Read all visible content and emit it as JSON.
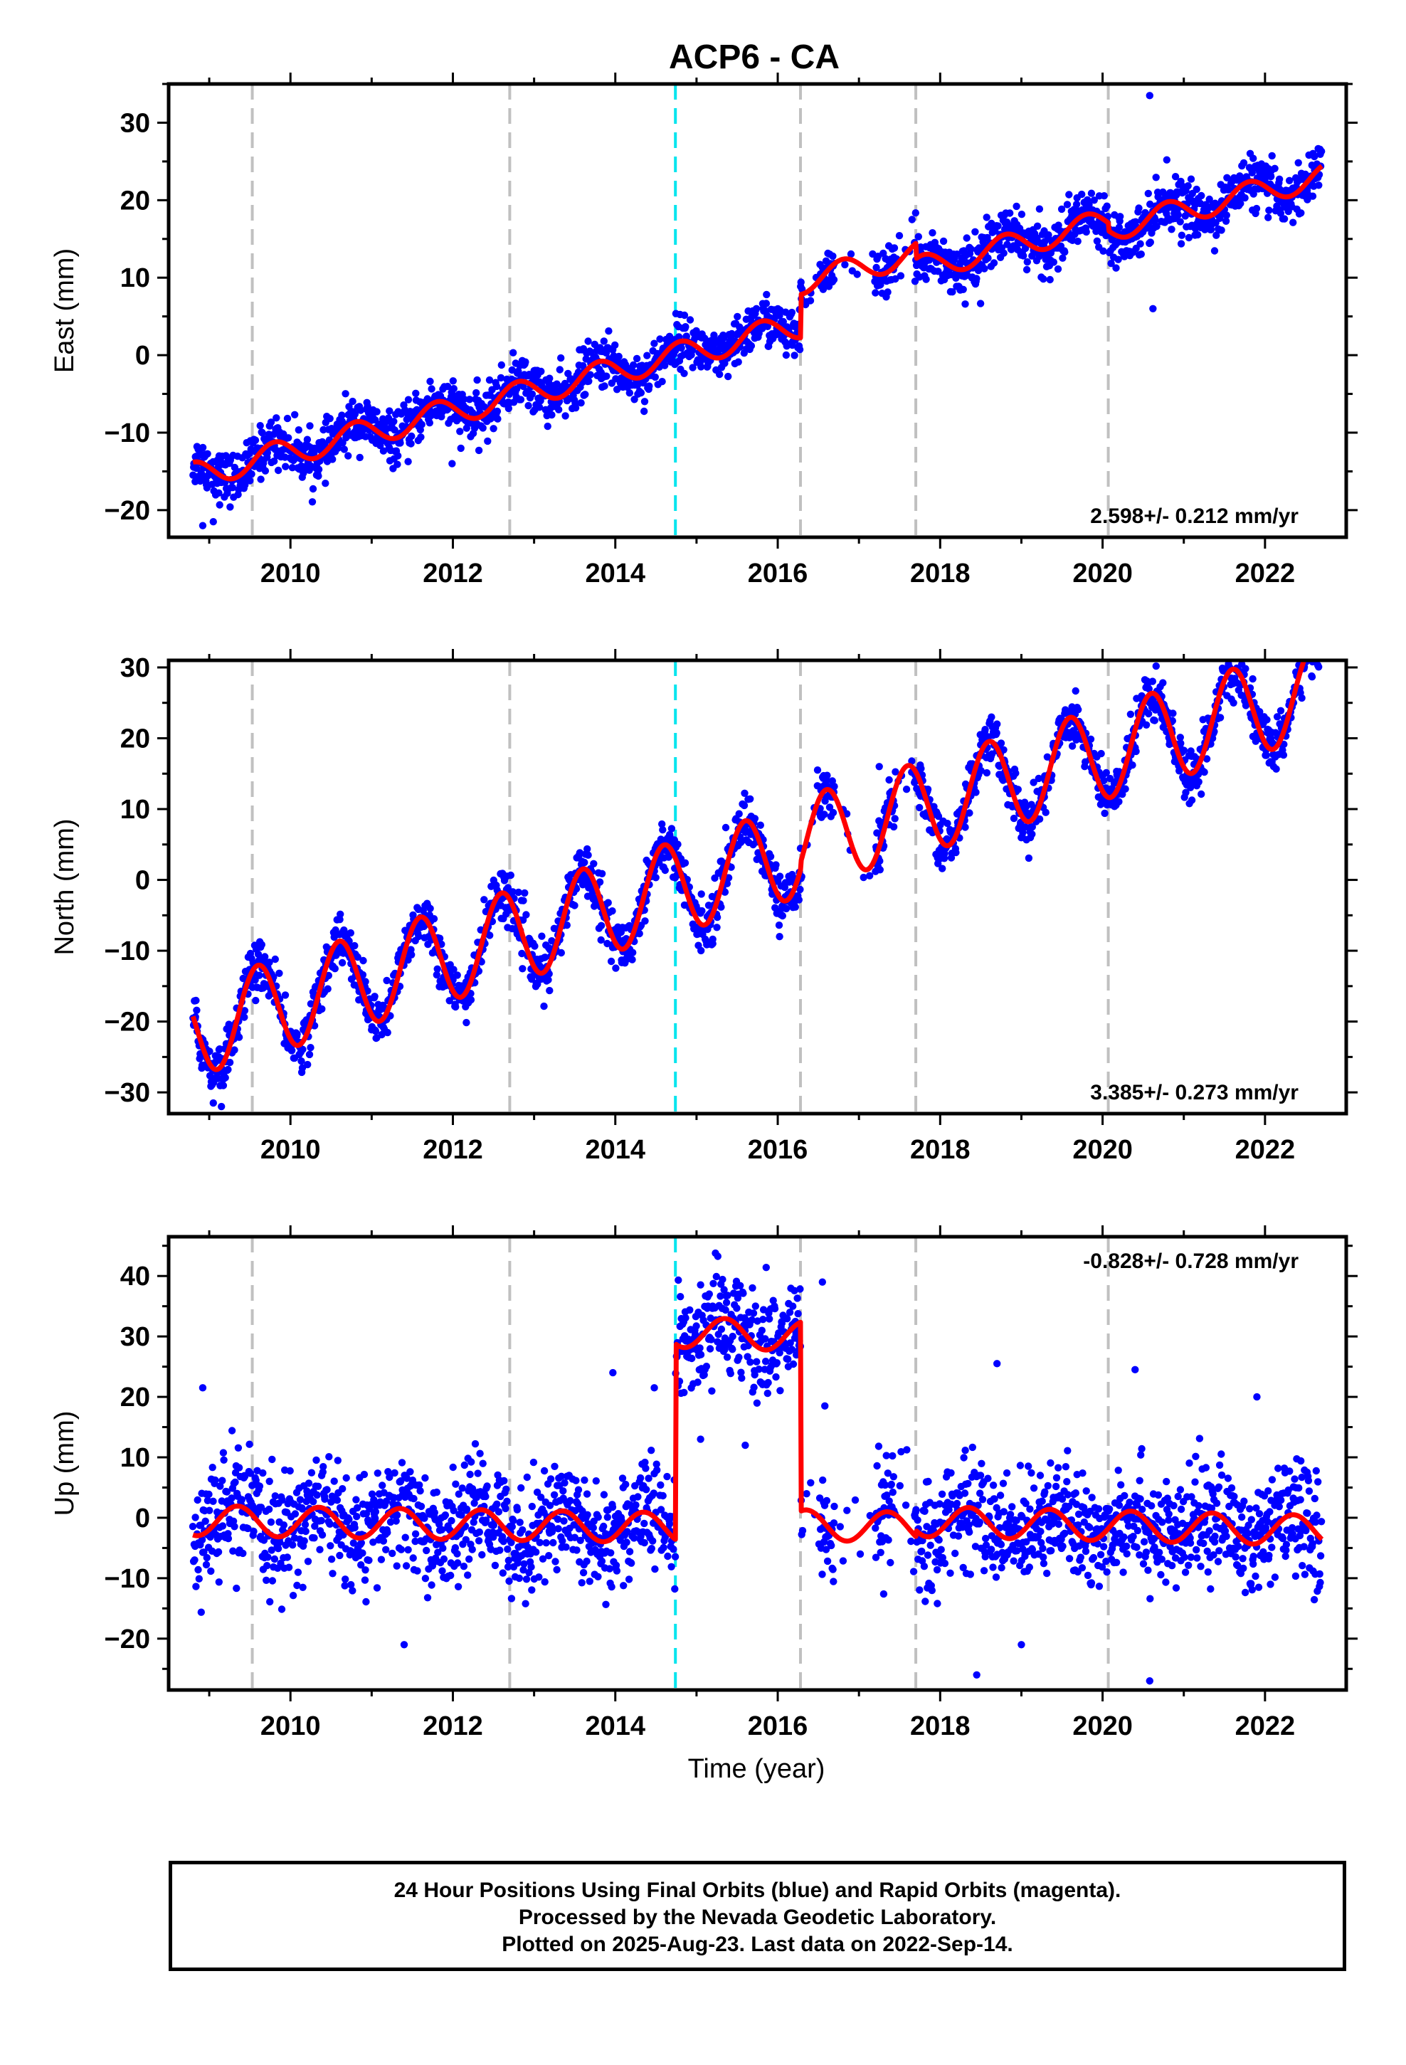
{
  "chart_data": {
    "title": "ACP6 - CA",
    "xlabel": "Time (year)",
    "xlim": [
      2008.5,
      2023.0
    ],
    "x_ticks": [
      2010,
      2012,
      2014,
      2016,
      2018,
      2020,
      2022
    ],
    "x_tick_labels": [
      "2010",
      "2012",
      "2014",
      "2016",
      "2018",
      "2020",
      "2022"
    ],
    "event_lines": {
      "gray_dashed": [
        2009.53,
        2012.7,
        2016.28,
        2017.7,
        2020.07
      ],
      "cyan_dashed": [
        2014.74
      ]
    },
    "point_color": "#0000ff",
    "model_color": "#ff0000",
    "event_gray_color": "#c0c0c0",
    "event_cyan_color": "#00e5ee",
    "panels": [
      {
        "type": "scatter",
        "ylabel": "East (mm)",
        "ylim": [
          -23.5,
          35.0
        ],
        "y_ticks": [
          -20,
          -10,
          0,
          10,
          20,
          30
        ],
        "y_tick_labels": [
          "−20",
          "−10",
          "0",
          "10",
          "20",
          "30"
        ],
        "rate_label": "2.598+/- 0.212 mm/yr",
        "rate_position": "bottom-right",
        "model": {
          "segments": [
            {
              "start": 2008.8,
              "end": 2016.28,
              "offset": -2.0,
              "rate": 2.6,
              "amp": 1.7,
              "phase": 0.55,
              "x0": 2014.0
            },
            {
              "start": 2016.28,
              "end": 2017.7,
              "offset": 3.5,
              "rate": 2.6,
              "amp": 1.6,
              "phase": 0.55,
              "x0": 2014.0
            },
            {
              "start": 2017.7,
              "end": 2020.07,
              "offset": 1.5,
              "rate": 2.6,
              "amp": 1.6,
              "phase": 0.55,
              "x0": 2014.0
            },
            {
              "start": 2020.07,
              "end": 2022.7,
              "offset": 0.5,
              "rate": 2.6,
              "amp": 1.6,
              "phase": 0.55,
              "x0": 2014.0
            }
          ],
          "noise": 1.6
        },
        "outliers": [
          [
            2020.58,
            33.5
          ],
          [
            2008.92,
            -22.0
          ],
          [
            2009.05,
            -21.5
          ],
          [
            2020.62,
            6.0
          ],
          [
            2011.99,
            -14.0
          ]
        ]
      },
      {
        "type": "scatter",
        "ylabel": "North (mm)",
        "ylim": [
          -33.0,
          31.0
        ],
        "y_ticks": [
          -30,
          -20,
          -10,
          0,
          10,
          20,
          30
        ],
        "y_tick_labels": [
          "−30",
          "−20",
          "−10",
          "0",
          "10",
          "20",
          "30"
        ],
        "rate_label": "3.385+/- 0.273 mm/yr",
        "rate_position": "bottom-right",
        "model": {
          "segments": [
            {
              "start": 2008.8,
              "end": 2016.28,
              "offset": -3.6,
              "rate": 3.4,
              "amp": 6.5,
              "phase": 0.35,
              "x0": 2014.0
            },
            {
              "start": 2016.28,
              "end": 2022.7,
              "offset": -2.6,
              "rate": 3.4,
              "amp": 6.5,
              "phase": 0.35,
              "x0": 2014.0
            }
          ],
          "noise": 1.8
        },
        "outliers": [
          [
            2016.6,
            14.0
          ],
          [
            2017.25,
            16.0
          ],
          [
            2009.05,
            -31.5
          ],
          [
            2009.15,
            -32.0
          ],
          [
            2018.7,
            22.0
          ],
          [
            2015.2,
            -9.0
          ]
        ]
      },
      {
        "type": "scatter",
        "ylabel": "Up (mm)",
        "ylim": [
          -28.5,
          46.5
        ],
        "y_ticks": [
          -20,
          -10,
          0,
          10,
          20,
          30,
          40
        ],
        "y_tick_labels": [
          "−20",
          "−10",
          "0",
          "10",
          "20",
          "30",
          "40"
        ],
        "rate_label": "-0.828+/- 0.728 mm/yr",
        "rate_position": "top-right",
        "model": {
          "segments": [
            {
              "start": 2008.8,
              "end": 2014.74,
              "offset": -1.5,
              "rate": -0.2,
              "amp": 2.5,
              "phase": 0.1,
              "x0": 2014.0
            },
            {
              "start": 2014.74,
              "end": 2016.28,
              "offset": 31.0,
              "rate": -0.4,
              "amp": 2.5,
              "phase": 0.1,
              "x0": 2014.0
            },
            {
              "start": 2016.28,
              "end": 2017.7,
              "offset": -0.5,
              "rate": -0.3,
              "amp": 2.5,
              "phase": 0.1,
              "x0": 2014.0
            },
            {
              "start": 2017.7,
              "end": 2022.7,
              "offset": 0.5,
              "rate": -0.3,
              "amp": 2.5,
              "phase": 0.1,
              "x0": 2014.0
            }
          ],
          "noise": 4.5
        },
        "outliers": [
          [
            2008.92,
            21.5
          ],
          [
            2014.48,
            21.5
          ],
          [
            2013.97,
            24.0
          ],
          [
            2016.55,
            39.0
          ],
          [
            2016.58,
            18.5
          ],
          [
            2018.7,
            25.5
          ],
          [
            2020.4,
            24.5
          ],
          [
            2021.9,
            20.0
          ],
          [
            2018.45,
            -26.0
          ],
          [
            2020.58,
            -27.0
          ],
          [
            2019.0,
            -21.0
          ],
          [
            2011.4,
            -21.0
          ],
          [
            2015.05,
            13.0
          ],
          [
            2015.6,
            12.0
          ]
        ]
      }
    ],
    "data_gaps": [
      [
        2016.3,
        2016.52
      ],
      [
        2016.7,
        2017.2
      ],
      [
        2017.45,
        2017.68
      ]
    ]
  },
  "footer": {
    "line1": "24 Hour Positions Using Final Orbits (blue) and Rapid Orbits (magenta).",
    "line2": "Processed by the Nevada Geodetic Laboratory.",
    "line3": "Plotted on 2025-Aug-23. Last data on 2022-Sep-14."
  }
}
